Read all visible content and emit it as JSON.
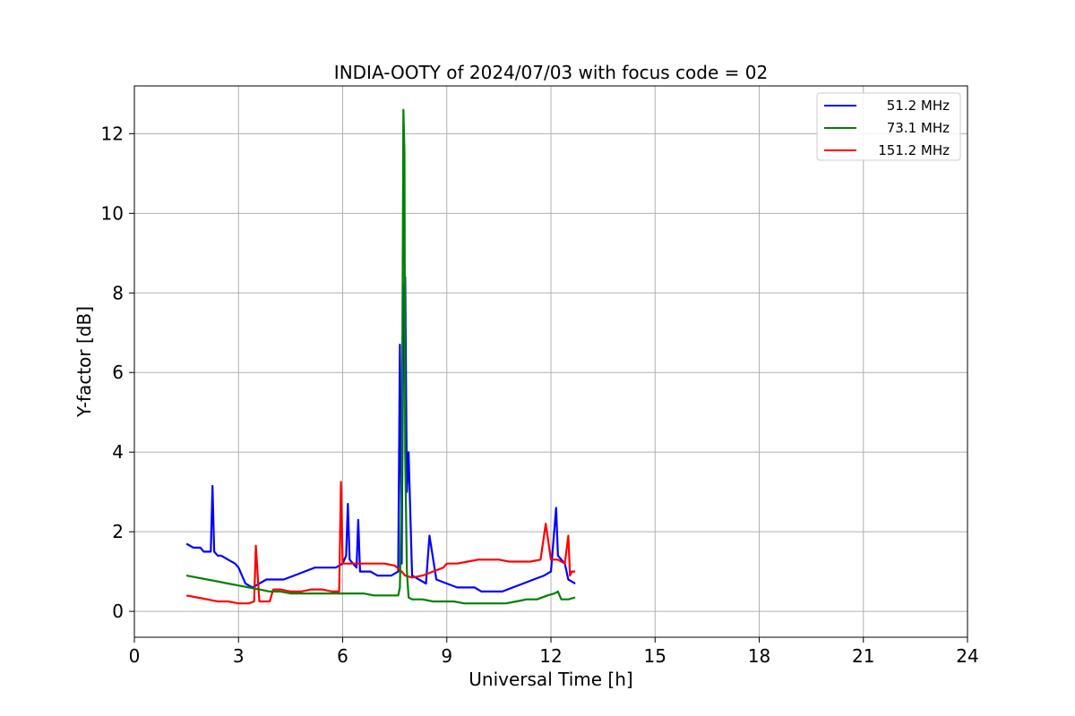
{
  "chart_data": {
    "type": "line",
    "title": "INDIA-OOTY of 2024/07/03 with focus code = 02",
    "xlabel": "Universal Time [h]",
    "ylabel": "Y-factor [dB]",
    "xlim": [
      0,
      24
    ],
    "ylim": [
      -0.65,
      13.2
    ],
    "xticks": [
      0,
      3,
      6,
      9,
      12,
      15,
      18,
      21,
      24
    ],
    "yticks": [
      0,
      2,
      4,
      6,
      8,
      10,
      12
    ],
    "grid": true,
    "legend_position": "top-right",
    "series": [
      {
        "name": "51.2 MHz",
        "color": "#0000ff",
        "x": [
          1.5,
          1.7,
          1.9,
          2.0,
          2.2,
          2.25,
          2.3,
          2.4,
          2.5,
          2.7,
          2.9,
          3.0,
          3.2,
          3.4,
          3.6,
          3.8,
          4.0,
          4.3,
          4.6,
          4.9,
          5.2,
          5.5,
          5.8,
          6.0,
          6.1,
          6.15,
          6.2,
          6.4,
          6.45,
          6.5,
          6.8,
          7.0,
          7.2,
          7.4,
          7.6,
          7.65,
          7.7,
          7.75,
          7.8,
          7.85,
          7.9,
          8.0,
          8.2,
          8.4,
          8.5,
          8.7,
          9.0,
          9.3,
          9.5,
          9.8,
          10.0,
          10.3,
          10.6,
          10.9,
          11.2,
          11.5,
          11.8,
          12.0,
          12.15,
          12.2,
          12.3,
          12.4,
          12.5,
          12.7
        ],
        "y": [
          1.7,
          1.6,
          1.6,
          1.5,
          1.5,
          3.15,
          1.5,
          1.4,
          1.4,
          1.3,
          1.2,
          1.1,
          0.7,
          0.6,
          0.7,
          0.8,
          0.8,
          0.8,
          0.9,
          1.0,
          1.1,
          1.1,
          1.1,
          1.2,
          1.4,
          2.7,
          1.3,
          1.1,
          2.3,
          1.0,
          1.0,
          0.9,
          0.9,
          0.9,
          1.0,
          6.7,
          1.2,
          7.6,
          8.4,
          3.0,
          4.0,
          0.9,
          0.8,
          0.7,
          1.9,
          0.8,
          0.7,
          0.6,
          0.6,
          0.6,
          0.5,
          0.5,
          0.5,
          0.6,
          0.7,
          0.8,
          0.9,
          1.0,
          2.6,
          1.4,
          1.3,
          1.2,
          0.8,
          0.7
        ]
      },
      {
        "name": "73.1 MHz",
        "color": "#008000",
        "x": [
          1.5,
          1.8,
          2.1,
          2.4,
          2.7,
          3.0,
          3.3,
          3.6,
          3.9,
          4.2,
          4.5,
          4.8,
          5.1,
          5.4,
          5.7,
          6.0,
          6.3,
          6.6,
          6.9,
          7.2,
          7.5,
          7.6,
          7.65,
          7.7,
          7.73,
          7.75,
          7.78,
          7.8,
          7.85,
          7.9,
          8.0,
          8.3,
          8.6,
          8.9,
          9.2,
          9.5,
          9.8,
          10.1,
          10.4,
          10.7,
          11.0,
          11.3,
          11.6,
          11.9,
          12.1,
          12.2,
          12.3,
          12.5,
          12.7
        ],
        "y": [
          0.9,
          0.85,
          0.8,
          0.75,
          0.7,
          0.65,
          0.6,
          0.55,
          0.5,
          0.5,
          0.45,
          0.45,
          0.45,
          0.45,
          0.45,
          0.45,
          0.45,
          0.45,
          0.4,
          0.4,
          0.4,
          0.4,
          0.6,
          3.1,
          8.3,
          12.6,
          11.5,
          4.0,
          1.0,
          0.35,
          0.3,
          0.3,
          0.25,
          0.25,
          0.25,
          0.2,
          0.2,
          0.2,
          0.2,
          0.2,
          0.25,
          0.3,
          0.3,
          0.4,
          0.45,
          0.5,
          0.3,
          0.3,
          0.35
        ]
      },
      {
        "name": "151.2 MHz",
        "color": "#ff0000",
        "x": [
          1.5,
          1.8,
          2.1,
          2.4,
          2.7,
          3.0,
          3.3,
          3.45,
          3.5,
          3.6,
          3.9,
          4.0,
          4.2,
          4.5,
          4.8,
          5.1,
          5.4,
          5.7,
          5.9,
          5.95,
          6.0,
          6.3,
          6.6,
          6.9,
          7.2,
          7.5,
          7.7,
          7.8,
          8.0,
          8.3,
          8.6,
          8.9,
          9.0,
          9.3,
          9.6,
          9.9,
          10.2,
          10.5,
          10.8,
          11.1,
          11.4,
          11.7,
          11.85,
          12.0,
          12.2,
          12.4,
          12.5,
          12.55,
          12.6,
          12.7
        ],
        "y": [
          0.4,
          0.35,
          0.3,
          0.25,
          0.25,
          0.2,
          0.2,
          0.25,
          1.65,
          0.25,
          0.25,
          0.55,
          0.55,
          0.5,
          0.5,
          0.55,
          0.55,
          0.5,
          0.5,
          3.25,
          1.2,
          1.2,
          1.2,
          1.2,
          1.2,
          1.15,
          1.0,
          0.9,
          0.85,
          0.9,
          1.0,
          1.1,
          1.2,
          1.2,
          1.25,
          1.3,
          1.3,
          1.3,
          1.25,
          1.25,
          1.25,
          1.3,
          2.2,
          1.3,
          1.3,
          1.2,
          1.9,
          0.9,
          1.0,
          1.0
        ]
      }
    ]
  }
}
